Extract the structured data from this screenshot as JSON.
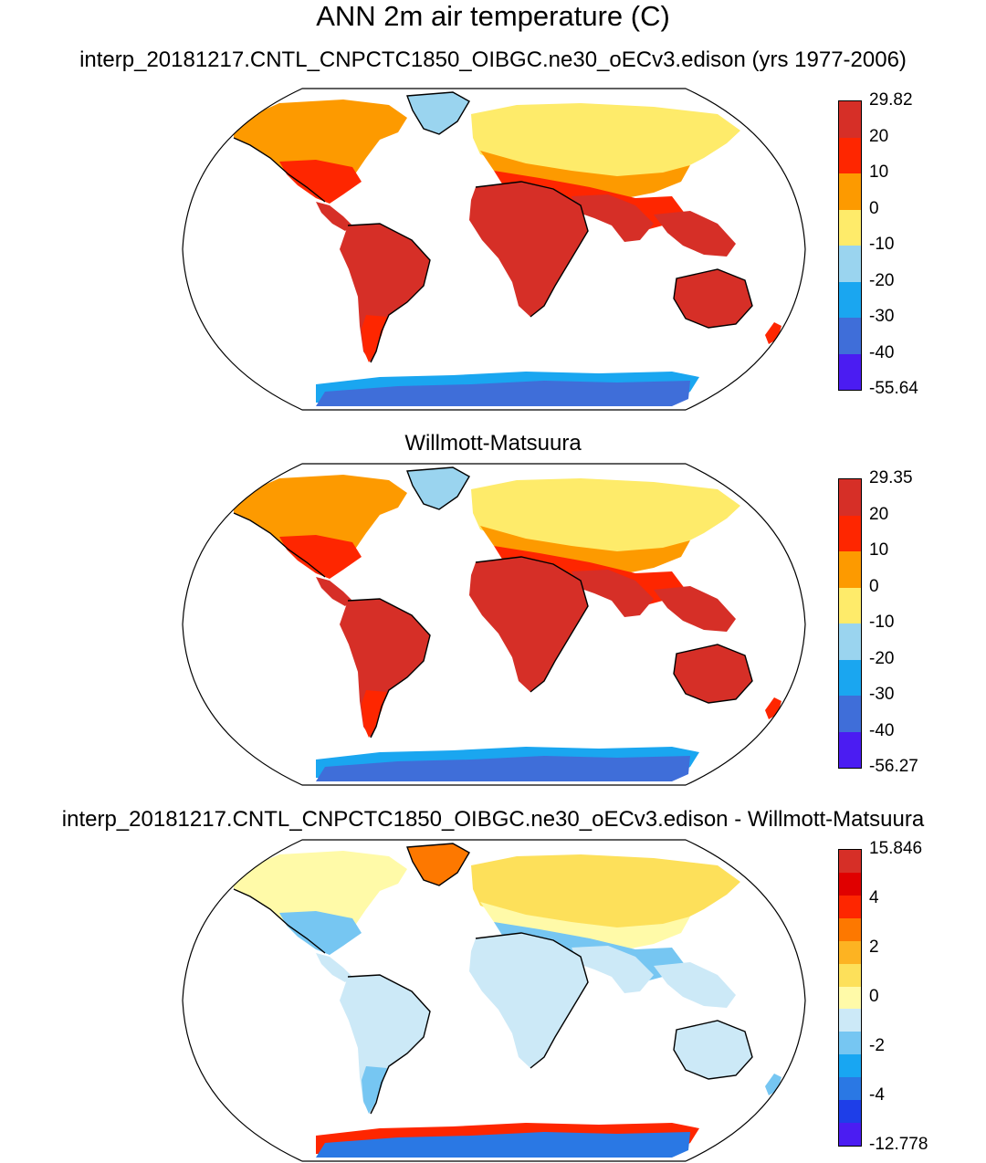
{
  "main_title": "ANN 2m air temperature (C)",
  "panels": [
    {
      "title": "interp_20181217.CNTL_CNPCTC1850_OIBGC.ne30_oECv3.edison (yrs 1977-2006)",
      "colorbar": {
        "labels": [
          "29.82",
          "20",
          "10",
          "0",
          "-10",
          "-20",
          "-30",
          "-40",
          "-55.64"
        ],
        "colors": [
          "#d62f27",
          "#fe2600",
          "#fd9a00",
          "#feeb6a",
          "#9ad4ef",
          "#1aa6f0",
          "#3f6ed9",
          "#4b1cf2"
        ]
      },
      "land_colors": {
        "tropics": "#d62f27",
        "subtropics": "#fe2600",
        "midlat": "#fd9a00",
        "highlat": "#feeb6a",
        "arctic": "#9ad4ef",
        "antarctic_edge": "#1aa6f0",
        "antarctic": "#3f6ed9"
      }
    },
    {
      "title": "Willmott-Matsuura",
      "colorbar": {
        "labels": [
          "29.35",
          "20",
          "10",
          "0",
          "-10",
          "-20",
          "-30",
          "-40",
          "-56.27"
        ],
        "colors": [
          "#d62f27",
          "#fe2600",
          "#fd9a00",
          "#feeb6a",
          "#9ad4ef",
          "#1aa6f0",
          "#3f6ed9",
          "#4b1cf2"
        ]
      },
      "land_colors": {
        "tropics": "#d62f27",
        "subtropics": "#fe2600",
        "midlat": "#fd9a00",
        "highlat": "#feeb6a",
        "arctic": "#9ad4ef",
        "antarctic_edge": "#1aa6f0",
        "antarctic": "#3f6ed9"
      }
    },
    {
      "title": "interp_20181217.CNTL_CNPCTC1850_OIBGC.ne30_oECv3.edison - Willmott-Matsuura",
      "colorbar": {
        "labels": [
          "15.846",
          "",
          "4",
          "",
          "2",
          "",
          "0",
          "",
          "-2",
          "",
          "-4",
          "",
          "-12.778"
        ],
        "colors": [
          "#d62f27",
          "#e00000",
          "#fe2600",
          "#fd7800",
          "#fdb322",
          "#fde05a",
          "#fffaa8",
          "#cce9f7",
          "#76c6f2",
          "#18a6f2",
          "#2a78e4",
          "#1e3ee8",
          "#4b1cf2"
        ]
      },
      "land_colors": {
        "tropics": "#cce9f7",
        "subtropics": "#76c6f2",
        "midlat": "#fffaa8",
        "highlat": "#fde05a",
        "arctic": "#fd7800",
        "antarctic_edge": "#fe2600",
        "antarctic": "#2a78e4"
      }
    }
  ]
}
